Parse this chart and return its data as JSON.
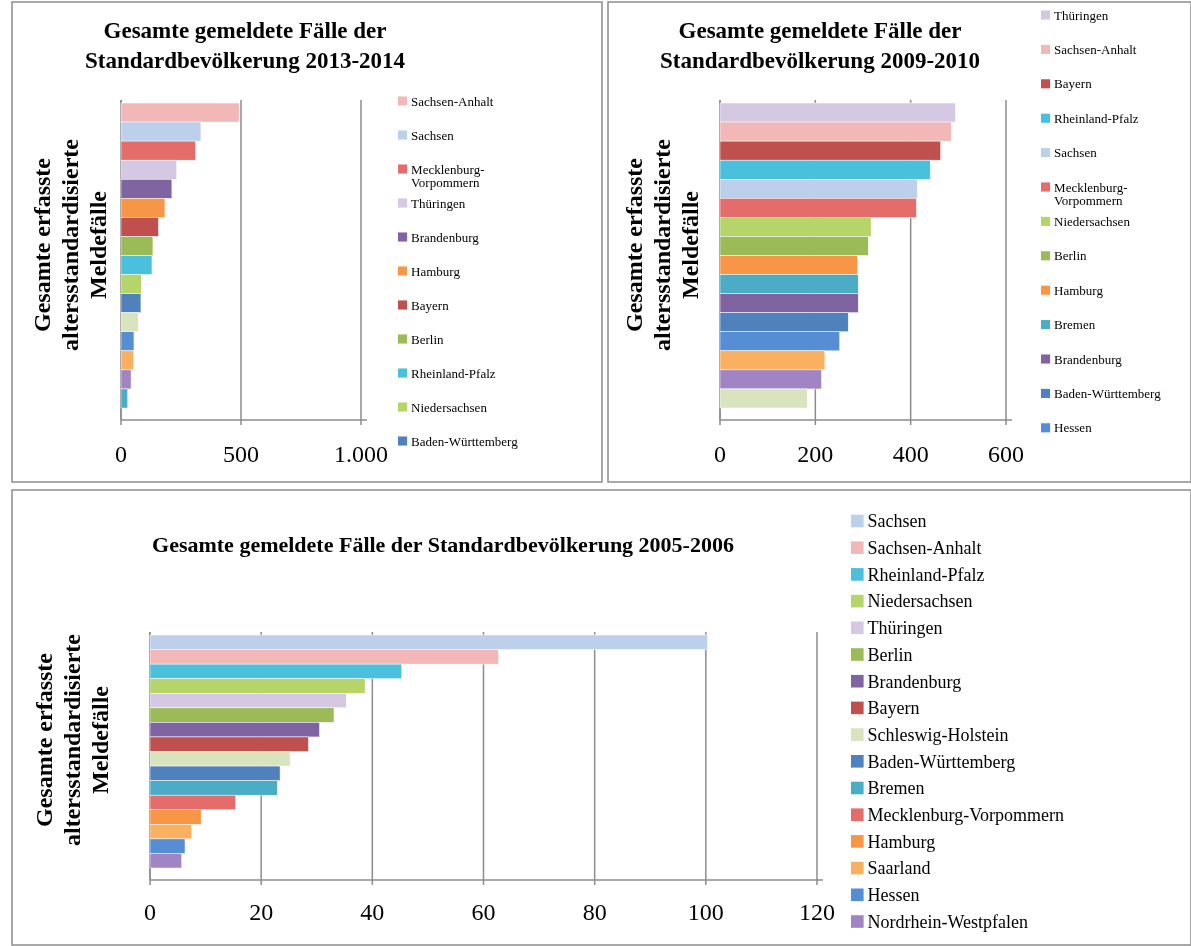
{
  "chart_data": [
    {
      "type": "bar",
      "orientation": "horizontal",
      "title": "Gesamte gemeldete Fälle der Standardbevölkerung  2013-2014",
      "ylabel": "Gesamte erfasste altersstandardisierte Meldefälle",
      "categories": [
        null
      ],
      "xlim": [
        0,
        1000
      ],
      "xticks": [
        0,
        500,
        {
          "value": 1000,
          "label": "1.000"
        }
      ],
      "grid": "x",
      "legend": "right",
      "series": [
        {
          "name": "Sachsen-Anhalt",
          "color": "#f2b8b8",
          "values": [
            492
          ]
        },
        {
          "name": "Sachsen",
          "color": "#bcd0ec",
          "values": [
            333
          ]
        },
        {
          "name": "Mecklenburg-Vorpommern",
          "color": "#e46c6a",
          "values": [
            311
          ]
        },
        {
          "name": "Thüringen",
          "color": "#d4c8e2",
          "values": [
            232
          ]
        },
        {
          "name": "Brandenburg",
          "color": "#8064a2",
          "values": [
            212
          ]
        },
        {
          "name": "Hamburg",
          "color": "#f79646",
          "values": [
            183
          ]
        },
        {
          "name": "Bayern",
          "color": "#c0504d",
          "values": [
            156
          ]
        },
        {
          "name": "Berlin",
          "color": "#9bbb59",
          "values": [
            133
          ]
        },
        {
          "name": "Rheinland-Pfalz",
          "color": "#4bc0dc",
          "values": [
            129
          ]
        },
        {
          "name": "Niedersachsen",
          "color": "#b5d56a",
          "values": [
            85
          ]
        },
        {
          "name": "Baden-Württemberg",
          "color": "#4f81bd",
          "values": [
            83
          ]
        },
        {
          "color": "#d7e4bd",
          "values": [
            72
          ]
        },
        {
          "color": "#558ed5",
          "values": [
            54
          ]
        },
        {
          "color": "#fab061",
          "values": [
            51
          ]
        },
        {
          "color": "#a184c4",
          "values": [
            42
          ]
        },
        {
          "color": "#4bacc6",
          "values": [
            28
          ]
        }
      ]
    },
    {
      "type": "bar",
      "orientation": "horizontal",
      "title": "Gesamte gemeldete Fälle der Standardbevölkerung 2009-2010",
      "ylabel": "Gesamte erfasste altersstandardisierte Meldefälle",
      "categories": [
        null
      ],
      "xlim": [
        0,
        600
      ],
      "xticks": [
        0,
        200,
        400,
        600
      ],
      "grid": "x",
      "legend": "right",
      "series": [
        {
          "name": "Thüringen",
          "color": "#d4c8e2",
          "values": [
            494
          ]
        },
        {
          "name": "Sachsen-Anhalt",
          "color": "#f2b8b8",
          "values": [
            485
          ]
        },
        {
          "name": "Bayern",
          "color": "#c0504d",
          "values": [
            463
          ]
        },
        {
          "name": "Rheinland-Pfalz",
          "color": "#4bc0dc",
          "values": [
            441
          ]
        },
        {
          "name": "Sachsen",
          "color": "#bcd0ec",
          "values": [
            414
          ]
        },
        {
          "name": "Mecklenburg-Vorpommern",
          "color": "#e46c6a",
          "values": [
            412
          ]
        },
        {
          "name": "Niedersachsen",
          "color": "#b5d56a",
          "values": [
            317
          ]
        },
        {
          "name": "Berlin",
          "color": "#9bbb59",
          "values": [
            311
          ]
        },
        {
          "name": "Hamburg",
          "color": "#f79646",
          "values": [
            288
          ]
        },
        {
          "name": "Bremen",
          "color": "#4bacc6",
          "values": [
            290
          ]
        },
        {
          "name": "Brandenburg",
          "color": "#8064a2",
          "values": [
            290
          ]
        },
        {
          "name": "Baden-Württemberg",
          "color": "#4f81bd",
          "values": [
            269
          ]
        },
        {
          "name": "Hessen",
          "color": "#558ed5",
          "values": [
            251
          ]
        },
        {
          "color": "#fab061",
          "values": [
            220
          ]
        },
        {
          "color": "#a184c4",
          "values": [
            213
          ]
        },
        {
          "color": "#d7e4bd",
          "values": [
            183
          ]
        }
      ]
    },
    {
      "type": "bar",
      "orientation": "horizontal",
      "title": "Gesamte gemeldete Fälle der Standardbevölkerung 2005-2006",
      "ylabel": "Gesamte erfasste altersstandardisierte Meldefälle",
      "categories": [
        null
      ],
      "xlim": [
        0,
        120
      ],
      "xticks": [
        0,
        20,
        40,
        60,
        80,
        100,
        120
      ],
      "grid": "x",
      "legend": "right",
      "series": [
        {
          "name": "Sachsen",
          "color": "#bcd0ec",
          "values": [
            100.3
          ]
        },
        {
          "name": "Sachsen-Anhalt",
          "color": "#f2b8b8",
          "values": [
            62.7
          ]
        },
        {
          "name": "Rheinland-Pfalz",
          "color": "#4bc0dc",
          "values": [
            45.3
          ]
        },
        {
          "name": "Niedersachsen",
          "color": "#b5d56a",
          "values": [
            38.7
          ]
        },
        {
          "name": "Thüringen",
          "color": "#d4c8e2",
          "values": [
            35.3
          ]
        },
        {
          "name": "Berlin",
          "color": "#9bbb59",
          "values": [
            33.1
          ]
        },
        {
          "name": "Brandenburg",
          "color": "#8064a2",
          "values": [
            30.5
          ]
        },
        {
          "name": "Bayern",
          "color": "#c0504d",
          "values": [
            28.5
          ]
        },
        {
          "name": "Schleswig-Holstein",
          "color": "#d7e4bd",
          "values": [
            25.2
          ]
        },
        {
          "name": "Baden-Württemberg",
          "color": "#4f81bd",
          "values": [
            23.4
          ]
        },
        {
          "name": "Bremen",
          "color": "#4bacc6",
          "values": [
            22.9
          ]
        },
        {
          "name": "Mecklenburg-Vorpommern",
          "color": "#e46c6a",
          "values": [
            15.4
          ]
        },
        {
          "name": "Hamburg",
          "color": "#f79646",
          "values": [
            9.2
          ]
        },
        {
          "name": "Saarland",
          "color": "#fab061",
          "values": [
            7.5
          ]
        },
        {
          "name": "Hessen",
          "color": "#558ed5",
          "values": [
            6.3
          ]
        },
        {
          "name": "Nordrhein-Westpfalen",
          "color": "#a184c4",
          "values": [
            5.7
          ]
        }
      ]
    }
  ]
}
